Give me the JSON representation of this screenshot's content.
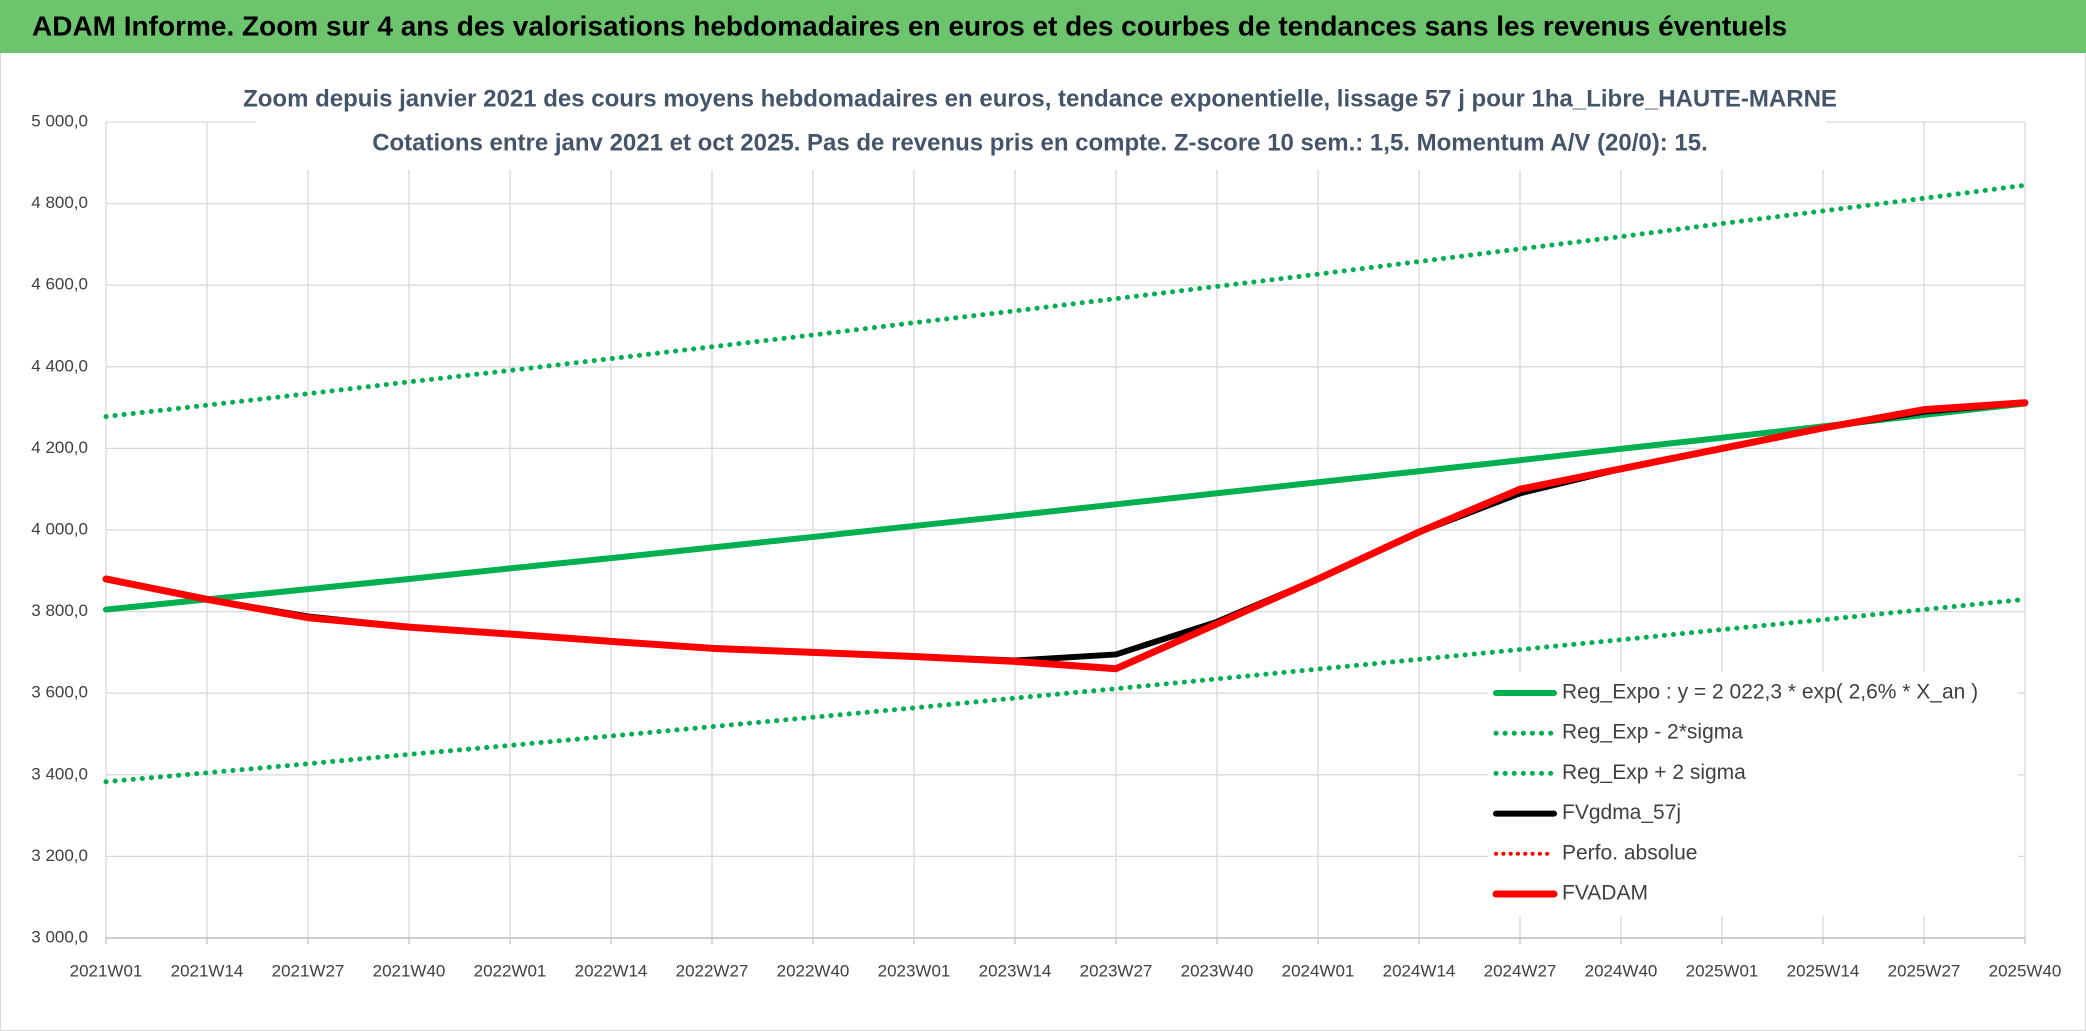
{
  "page_title": "ADAM Informe. Zoom sur 4 ans des valorisations hebdomadaires en euros et des courbes de tendances sans les revenus éventuels",
  "chart_data": {
    "type": "line",
    "title": "Zoom depuis janvier 2021 des cours moyens hebdomadaires en euros, tendance exponentielle, lissage 57 j pour 1ha_Libre_HAUTE-MARNE",
    "subtitle": "Cotations entre janv 2021 et oct 2025. Pas de revenus pris en compte. Z-score 10 sem.: 1,5. Momentum A/V (20/0): 15.",
    "categories": [
      "2021W01",
      "2021W14",
      "2021W27",
      "2021W40",
      "2022W01",
      "2022W14",
      "2022W27",
      "2022W40",
      "2023W01",
      "2023W14",
      "2023W27",
      "2023W40",
      "2024W01",
      "2024W14",
      "2024W27",
      "2024W40",
      "2025W01",
      "2025W14",
      "2025W27",
      "2025W40"
    ],
    "ylim": [
      3000,
      5000
    ],
    "yticks": [
      {
        "value": 3000,
        "label": "3 000,0"
      },
      {
        "value": 3200,
        "label": "3 200,0"
      },
      {
        "value": 3400,
        "label": "3 400,0"
      },
      {
        "value": 3600,
        "label": "3 600,0"
      },
      {
        "value": 3800,
        "label": "3 800,0"
      },
      {
        "value": 4000,
        "label": "4 000,0"
      },
      {
        "value": 4200,
        "label": "4 200,0"
      },
      {
        "value": 4400,
        "label": "4 400,0"
      },
      {
        "value": 4600,
        "label": "4 600,0"
      },
      {
        "value": 4800,
        "label": "4 800,0"
      },
      {
        "value": 5000,
        "label": "5 000,0"
      }
    ],
    "grid": true,
    "legend": "lower-right",
    "series": [
      {
        "name": "Reg_Expo : y = 2 022,3 * exp( 2,6% *  X_an )",
        "color": "#00b050",
        "line_style": "solid",
        "line_width": 6,
        "values": [
          3805,
          3830,
          3855,
          3880,
          3906,
          3931,
          3957,
          3983,
          4010,
          4036,
          4063,
          4090,
          4117,
          4144,
          4171,
          4199,
          4226,
          4254,
          4282,
          4310
        ]
      },
      {
        "name": "Reg_Exp - 2*sigma",
        "color": "#00b050",
        "line_style": "dotted",
        "line_width": 5,
        "values": [
          3383,
          3405,
          3427,
          3450,
          3472,
          3495,
          3518,
          3541,
          3564,
          3588,
          3611,
          3635,
          3659,
          3683,
          3707,
          3731,
          3756,
          3780,
          3805,
          3830
        ]
      },
      {
        "name": "Reg_Exp + 2 sigma",
        "color": "#00b050",
        "line_style": "dotted",
        "line_width": 5,
        "values": [
          4278,
          4306,
          4334,
          4363,
          4391,
          4420,
          4449,
          4478,
          4508,
          4537,
          4567,
          4597,
          4627,
          4658,
          4689,
          4719,
          4751,
          4782,
          4813,
          4845
        ]
      },
      {
        "name": "FVgdma_57j",
        "color": "#000000",
        "line_style": "solid",
        "line_width": 6,
        "values": [
          3880,
          3830,
          3788,
          3762,
          3745,
          3727,
          3710,
          3700,
          3690,
          3680,
          3695,
          3775,
          3880,
          3995,
          4090,
          4150,
          4200,
          4250,
          4290,
          4312
        ]
      },
      {
        "name": "Perfo. absolue",
        "color": "#ff0000",
        "line_style": "dotted",
        "line_width": 4,
        "values": [
          3880,
          3830,
          3785,
          3762,
          3745,
          3727,
          3710,
          3700,
          3690,
          3678,
          3660,
          3770,
          3880,
          3995,
          4100,
          4150,
          4200,
          4250,
          4295,
          4312
        ]
      },
      {
        "name": "FVADAM",
        "color": "#ff0000",
        "line_style": "solid",
        "line_width": 7,
        "values": [
          3880,
          3830,
          3785,
          3762,
          3745,
          3727,
          3710,
          3700,
          3690,
          3678,
          3660,
          3770,
          3880,
          3995,
          4100,
          4150,
          4200,
          4250,
          4295,
          4312
        ]
      }
    ]
  }
}
